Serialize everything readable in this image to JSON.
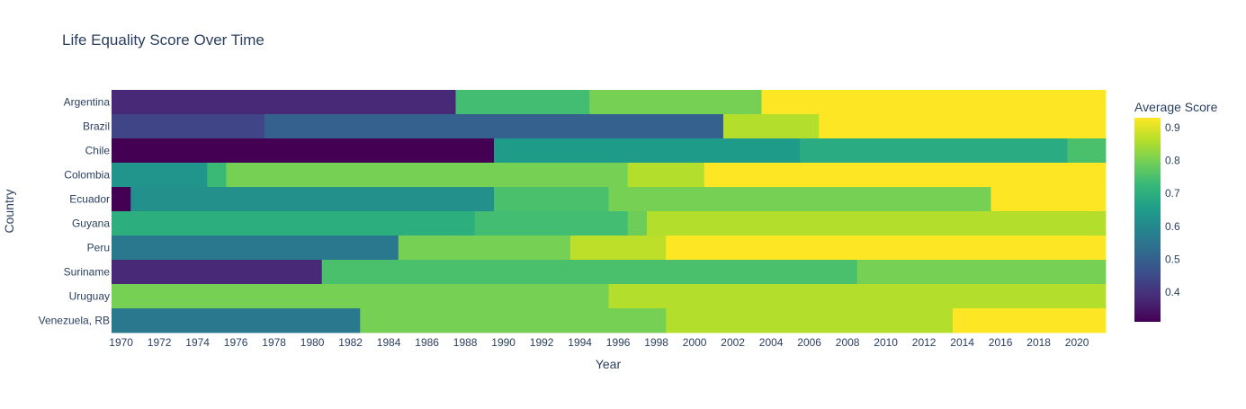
{
  "chart_data": {
    "type": "heatmap",
    "title": "Life Equality Score Over Time",
    "xlabel": "Year",
    "ylabel": "Country",
    "colorbar_title": "Average Score",
    "colorscale": "Viridis",
    "zmin": 0.31,
    "zmax": 0.93,
    "colorbar_ticks": [
      "0.4",
      "0.5",
      "0.6",
      "0.7",
      "0.8",
      "0.9"
    ],
    "colorbar_tick_values": [
      0.4,
      0.5,
      0.6,
      0.7,
      0.8,
      0.9
    ],
    "x_range": [
      1970,
      2021
    ],
    "x_ticks": [
      "1970",
      "1972",
      "1974",
      "1976",
      "1978",
      "1980",
      "1982",
      "1984",
      "1986",
      "1988",
      "1990",
      "1992",
      "1994",
      "1996",
      "1998",
      "2000",
      "2002",
      "2004",
      "2006",
      "2008",
      "2010",
      "2012",
      "2014",
      "2016",
      "2018",
      "2020"
    ],
    "countries": [
      "Argentina",
      "Brazil",
      "Chile",
      "Colombia",
      "Ecuador",
      "Guyana",
      "Peru",
      "Suriname",
      "Uruguay",
      "Venezuela, RB"
    ],
    "segments": {
      "Argentina": [
        [
          1970,
          1987,
          0.38
        ],
        [
          1988,
          1994,
          0.74
        ],
        [
          1995,
          2003,
          0.8
        ],
        [
          2004,
          2021,
          0.93
        ]
      ],
      "Brazil": [
        [
          1970,
          1977,
          0.44
        ],
        [
          1978,
          2001,
          0.5
        ],
        [
          2002,
          2006,
          0.86
        ],
        [
          2007,
          2021,
          0.93
        ]
      ],
      "Chile": [
        [
          1970,
          1989,
          0.31
        ],
        [
          1990,
          2005,
          0.65
        ],
        [
          2006,
          2019,
          0.69
        ],
        [
          2020,
          2021,
          0.75
        ]
      ],
      "Colombia": [
        [
          1970,
          1974,
          0.63
        ],
        [
          1975,
          1975,
          0.73
        ],
        [
          1976,
          1996,
          0.8
        ],
        [
          1997,
          2000,
          0.86
        ],
        [
          2001,
          2021,
          0.93
        ]
      ],
      "Ecuador": [
        [
          1970,
          1970,
          0.31
        ],
        [
          1971,
          1989,
          0.62
        ],
        [
          1990,
          1995,
          0.75
        ],
        [
          1996,
          2015,
          0.8
        ],
        [
          2016,
          2021,
          0.93
        ]
      ],
      "Guyana": [
        [
          1970,
          1988,
          0.7
        ],
        [
          1989,
          1996,
          0.74
        ],
        [
          1997,
          1997,
          0.79
        ],
        [
          1998,
          2021,
          0.86
        ]
      ],
      "Peru": [
        [
          1970,
          1984,
          0.56
        ],
        [
          1985,
          1993,
          0.8
        ],
        [
          1994,
          1998,
          0.87
        ],
        [
          1999,
          2021,
          0.93
        ]
      ],
      "Suriname": [
        [
          1970,
          1980,
          0.38
        ],
        [
          1981,
          2008,
          0.75
        ],
        [
          2009,
          2021,
          0.8
        ]
      ],
      "Uruguay": [
        [
          1970,
          1995,
          0.8
        ],
        [
          1996,
          2021,
          0.86
        ]
      ],
      "Venezuela, RB": [
        [
          1970,
          1982,
          0.56
        ],
        [
          1983,
          1998,
          0.8
        ],
        [
          1999,
          2013,
          0.86
        ],
        [
          2014,
          2021,
          0.93
        ]
      ]
    }
  }
}
